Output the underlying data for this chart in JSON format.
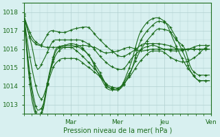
{
  "title": "",
  "xlabel": "Pression niveau de la mer( hPa )",
  "ylabel": "",
  "bg_color": "#d8f0f0",
  "plot_bg_color": "#d8f0f0",
  "grid_color": "#b0d0d0",
  "line_color": "#1a6b1a",
  "marker_color": "#1a6b1a",
  "xlim": [
    0,
    96
  ],
  "ylim": [
    1012.5,
    1018.5
  ],
  "yticks": [
    1013,
    1014,
    1015,
    1016,
    1017,
    1018
  ],
  "xtick_positions": [
    24,
    48,
    72,
    96
  ],
  "xtick_labels": [
    "Mar",
    "Mer",
    "Jeu",
    "Ven"
  ],
  "series": [
    {
      "comment": "flattest line - barely dips, stays near 1016 throughout",
      "points": [
        [
          0,
          1017.8
        ],
        [
          6,
          1016.4
        ],
        [
          12,
          1016.1
        ],
        [
          18,
          1016.1
        ],
        [
          24,
          1016.1
        ],
        [
          30,
          1016.2
        ],
        [
          36,
          1016.1
        ],
        [
          42,
          1015.8
        ],
        [
          48,
          1015.9
        ],
        [
          54,
          1016.1
        ],
        [
          60,
          1015.9
        ],
        [
          66,
          1016.0
        ],
        [
          72,
          1016.0
        ],
        [
          78,
          1016.0
        ],
        [
          84,
          1016.0
        ],
        [
          90,
          1016.0
        ],
        [
          95,
          1016.0
        ]
      ]
    },
    {
      "comment": "second flattest - small dip to ~1016",
      "points": [
        [
          0,
          1017.8
        ],
        [
          4,
          1016.5
        ],
        [
          8,
          1016.2
        ],
        [
          14,
          1017.0
        ],
        [
          20,
          1016.9
        ],
        [
          26,
          1017.1
        ],
        [
          32,
          1017.2
        ],
        [
          38,
          1016.6
        ],
        [
          44,
          1016.0
        ],
        [
          50,
          1015.6
        ],
        [
          56,
          1015.9
        ],
        [
          62,
          1016.3
        ],
        [
          68,
          1016.3
        ],
        [
          74,
          1016.2
        ],
        [
          80,
          1016.0
        ],
        [
          88,
          1016.0
        ],
        [
          95,
          1016.0
        ]
      ]
    },
    {
      "comment": "medium dip to ~1014.9",
      "points": [
        [
          0,
          1017.8
        ],
        [
          4,
          1016.2
        ],
        [
          7,
          1014.9
        ],
        [
          10,
          1015.4
        ],
        [
          16,
          1016.5
        ],
        [
          22,
          1016.5
        ],
        [
          28,
          1016.5
        ],
        [
          34,
          1016.2
        ],
        [
          40,
          1015.5
        ],
        [
          46,
          1015.0
        ],
        [
          50,
          1014.9
        ],
        [
          56,
          1015.6
        ],
        [
          62,
          1016.1
        ],
        [
          66,
          1016.2
        ],
        [
          72,
          1016.0
        ],
        [
          78,
          1015.9
        ],
        [
          84,
          1016.0
        ],
        [
          90,
          1016.2
        ],
        [
          95,
          1016.2
        ]
      ]
    },
    {
      "comment": "deeper dip to ~1013.3",
      "points": [
        [
          0,
          1017.8
        ],
        [
          5,
          1014.5
        ],
        [
          8,
          1013.4
        ],
        [
          9,
          1013.3
        ],
        [
          12,
          1014.1
        ],
        [
          16,
          1015.2
        ],
        [
          20,
          1015.5
        ],
        [
          26,
          1015.5
        ],
        [
          32,
          1015.1
        ],
        [
          38,
          1014.6
        ],
        [
          44,
          1014.0
        ],
        [
          48,
          1013.9
        ],
        [
          54,
          1014.5
        ],
        [
          60,
          1015.4
        ],
        [
          66,
          1015.9
        ],
        [
          70,
          1015.9
        ],
        [
          76,
          1015.5
        ],
        [
          82,
          1015.3
        ],
        [
          88,
          1015.6
        ],
        [
          92,
          1016.0
        ],
        [
          95,
          1016.2
        ]
      ]
    },
    {
      "comment": "deep dip to ~1012.7, then rises high to 1017.1",
      "points": [
        [
          0,
          1017.9
        ],
        [
          5,
          1013.4
        ],
        [
          7,
          1012.7
        ],
        [
          9,
          1012.8
        ],
        [
          13,
          1014.6
        ],
        [
          17,
          1015.8
        ],
        [
          21,
          1016.1
        ],
        [
          24,
          1016.1
        ],
        [
          27,
          1015.9
        ],
        [
          33,
          1015.3
        ],
        [
          39,
          1014.6
        ],
        [
          44,
          1013.9
        ],
        [
          48,
          1013.9
        ],
        [
          54,
          1014.7
        ],
        [
          60,
          1016.0
        ],
        [
          65,
          1016.7
        ],
        [
          69,
          1017.1
        ],
        [
          74,
          1017.0
        ],
        [
          78,
          1016.5
        ],
        [
          82,
          1016.1
        ],
        [
          86,
          1014.9
        ],
        [
          90,
          1014.6
        ],
        [
          95,
          1014.6
        ]
      ]
    },
    {
      "comment": "deep dip to ~1012.4, then rises to 1017.5",
      "points": [
        [
          0,
          1017.9
        ],
        [
          5,
          1013.1
        ],
        [
          7,
          1012.4
        ],
        [
          9,
          1012.5
        ],
        [
          13,
          1014.6
        ],
        [
          17,
          1016.0
        ],
        [
          21,
          1016.2
        ],
        [
          24,
          1016.3
        ],
        [
          28,
          1016.2
        ],
        [
          33,
          1015.7
        ],
        [
          38,
          1014.9
        ],
        [
          44,
          1013.9
        ],
        [
          48,
          1013.8
        ],
        [
          54,
          1014.6
        ],
        [
          60,
          1016.5
        ],
        [
          65,
          1017.2
        ],
        [
          69,
          1017.5
        ],
        [
          73,
          1017.4
        ],
        [
          77,
          1016.8
        ],
        [
          82,
          1015.7
        ],
        [
          86,
          1014.7
        ],
        [
          90,
          1014.3
        ],
        [
          95,
          1014.3
        ]
      ]
    },
    {
      "comment": "deepest dip to ~1012.3, then rises highest to 1017.7",
      "points": [
        [
          0,
          1017.9
        ],
        [
          5,
          1012.8
        ],
        [
          7,
          1012.3
        ],
        [
          9,
          1012.6
        ],
        [
          13,
          1014.7
        ],
        [
          17,
          1016.1
        ],
        [
          21,
          1016.2
        ],
        [
          24,
          1016.2
        ],
        [
          28,
          1016.1
        ],
        [
          33,
          1015.7
        ],
        [
          38,
          1014.7
        ],
        [
          44,
          1013.8
        ],
        [
          48,
          1013.8
        ],
        [
          54,
          1015.0
        ],
        [
          60,
          1017.0
        ],
        [
          65,
          1017.6
        ],
        [
          68,
          1017.7
        ],
        [
          72,
          1017.5
        ],
        [
          77,
          1016.4
        ],
        [
          82,
          1015.3
        ],
        [
          86,
          1014.7
        ],
        [
          90,
          1014.3
        ],
        [
          95,
          1014.3
        ]
      ]
    }
  ]
}
